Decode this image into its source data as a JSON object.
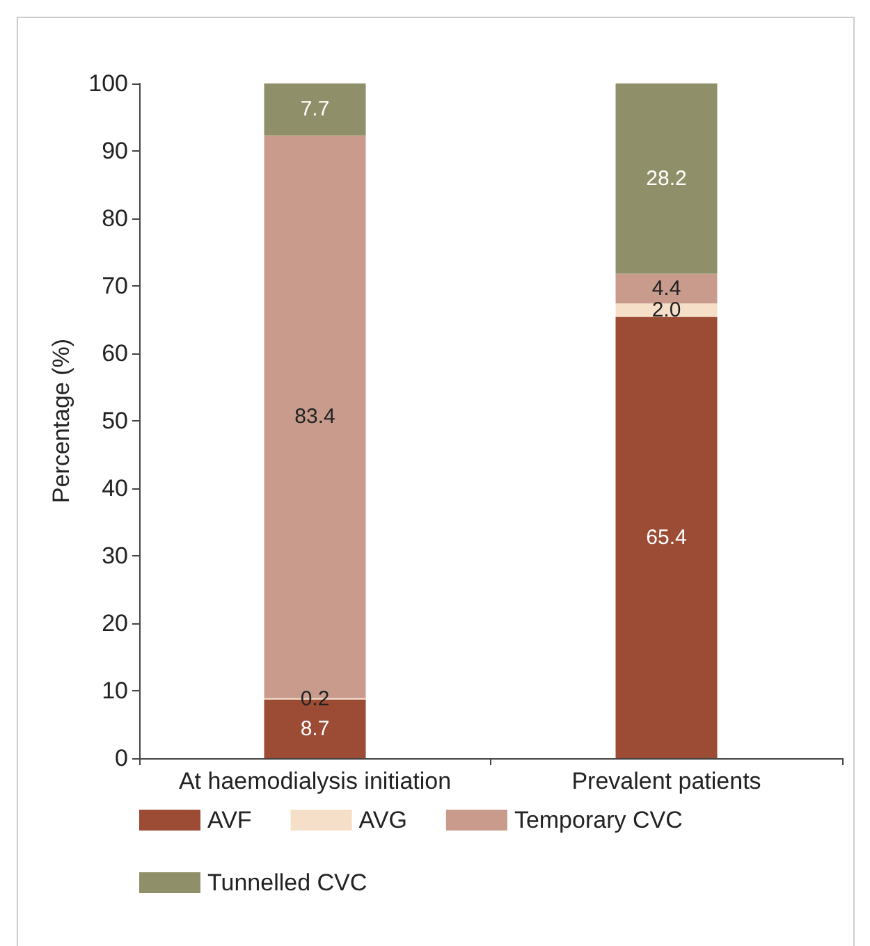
{
  "chart_data": {
    "type": "bar",
    "stacked": true,
    "ylabel": "Percentage (%)",
    "categories": [
      "At haemodialysis initiation",
      "Prevalent patients"
    ],
    "series": [
      {
        "name": "AVF",
        "color": "#9c4b34",
        "values": [
          8.7,
          65.4
        ],
        "value_labels": [
          "8.7",
          "65.4"
        ]
      },
      {
        "name": "AVG",
        "color": "#f6dfc8",
        "values": [
          0.2,
          2.0
        ],
        "value_labels": [
          "0.2",
          "2.0"
        ]
      },
      {
        "name": "Temporary CVC",
        "color": "#c89b8d",
        "values": [
          83.4,
          4.4
        ],
        "value_labels": [
          "83.4",
          "4.4"
        ]
      },
      {
        "name": "Tunnelled CVC",
        "color": "#8f906a",
        "values": [
          7.7,
          28.2
        ],
        "value_labels": [
          "7.7",
          "28.2"
        ]
      }
    ],
    "ylim": [
      0,
      100
    ],
    "yticks": [
      0,
      10,
      20,
      30,
      40,
      50,
      60,
      70,
      80,
      90,
      100
    ],
    "grid": false,
    "legend": "bottom"
  }
}
